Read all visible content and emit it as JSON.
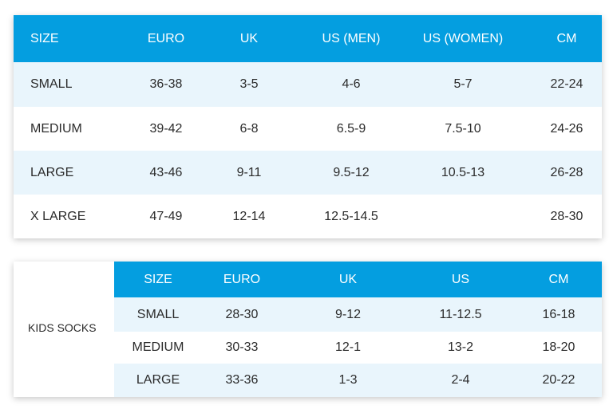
{
  "adult_table": {
    "columns": [
      "SIZE",
      "EURO",
      "UK",
      "US (MEN)",
      "US (WOMEN)",
      "CM"
    ],
    "rows": [
      [
        "SMALL",
        "36-38",
        "3-5",
        "4-6",
        "5-7",
        "22-24"
      ],
      [
        "MEDIUM",
        "39-42",
        "6-8",
        "6.5-9",
        "7.5-10",
        "24-26"
      ],
      [
        "LARGE",
        "43-46",
        "9-11",
        "9.5-12",
        "10.5-13",
        "26-28"
      ],
      [
        "X LARGE",
        "47-49",
        "12-14",
        "12.5-14.5",
        "",
        "28-30"
      ]
    ]
  },
  "kids_table": {
    "label": "KIDS SOCKS",
    "columns": [
      "SIZE",
      "EURO",
      "UK",
      "US",
      "CM"
    ],
    "rows": [
      [
        "SMALL",
        "28-30",
        "9-12",
        "11-12.5",
        "16-18"
      ],
      [
        "MEDIUM",
        "30-33",
        "12-1",
        "13-2",
        "18-20"
      ],
      [
        "LARGE",
        "33-36",
        "1-3",
        "2-4",
        "20-22"
      ]
    ]
  },
  "colors": {
    "header_bg": "#049ee0",
    "header_text": "#ffffff",
    "row_alt": "#e9f5fc",
    "row_plain": "#ffffff"
  }
}
